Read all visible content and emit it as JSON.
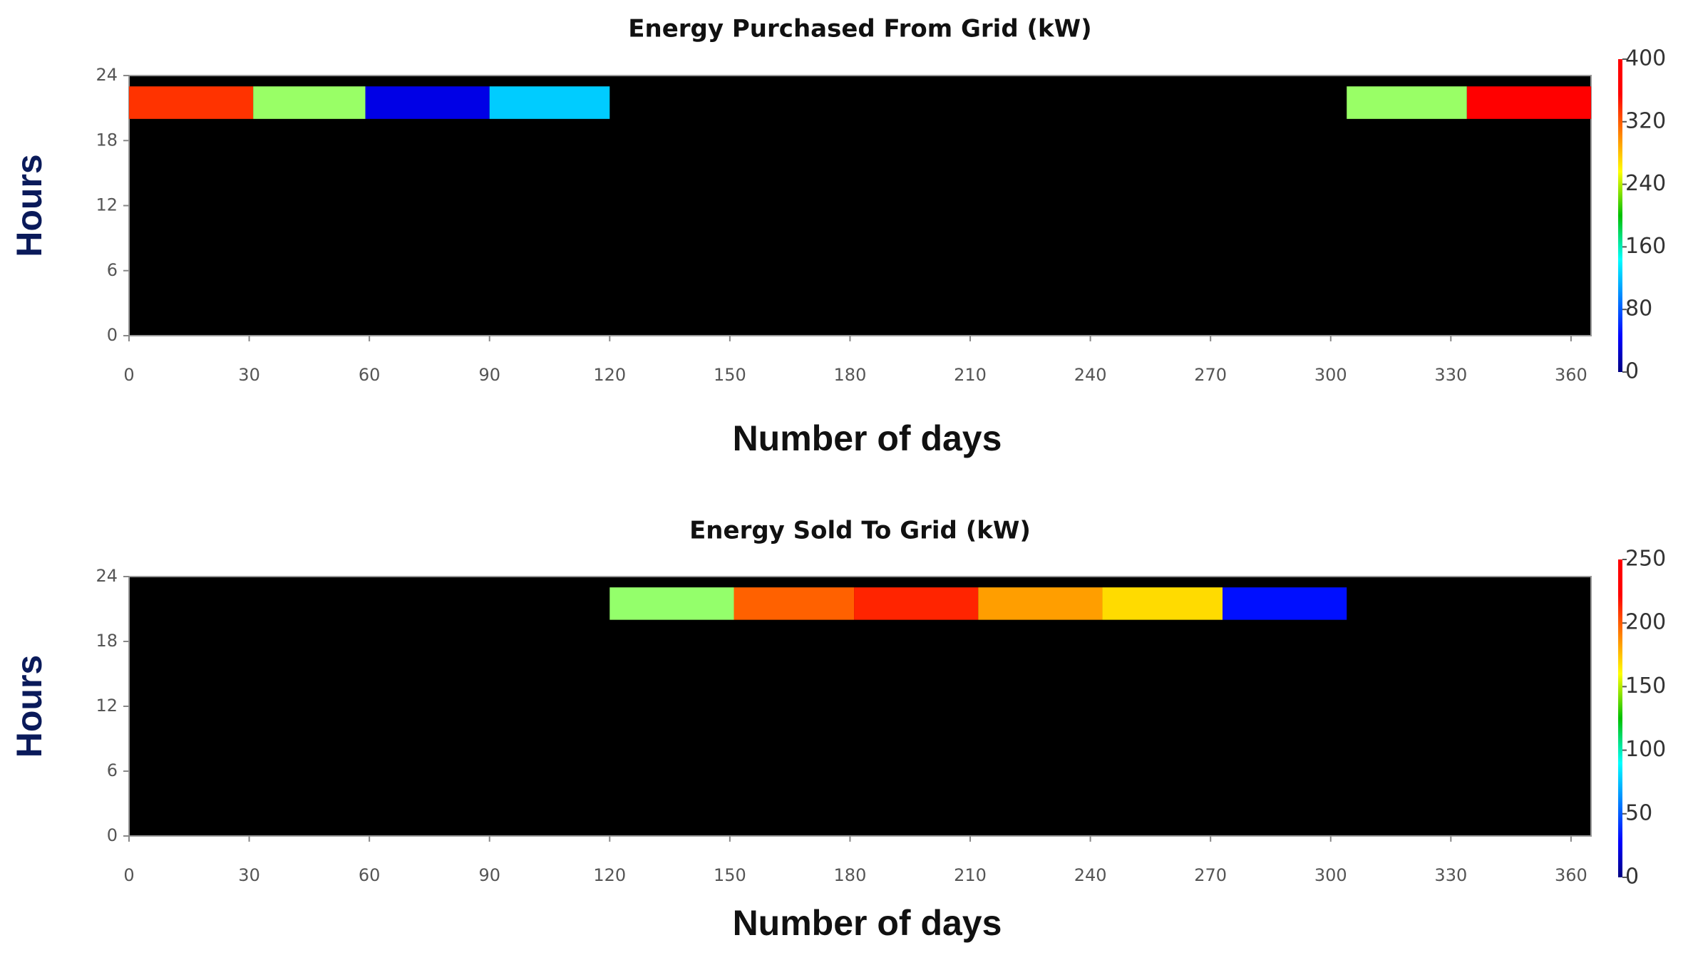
{
  "chart_data": [
    {
      "type": "heatmap",
      "title": "Energy Purchased From Grid (kW)",
      "x_label": "Number of days",
      "y_label": "Hours",
      "x_bins": [
        0,
        31,
        59,
        90,
        120,
        151,
        181,
        212,
        243,
        273,
        304,
        334,
        365
      ],
      "y_band": [
        20,
        23
      ],
      "values": [
        330,
        210,
        40,
        130,
        0,
        0,
        0,
        0,
        0,
        0,
        210,
        350
      ],
      "xlim": [
        0,
        365
      ],
      "xticks": [
        0,
        30,
        60,
        90,
        120,
        150,
        180,
        210,
        240,
        270,
        300,
        330,
        360
      ],
      "ylim": [
        0,
        24
      ],
      "yticks": [
        0,
        6,
        12,
        18,
        24
      ],
      "colormap": "jet",
      "clim": [
        0,
        400
      ],
      "cticks": [
        0,
        80,
        160,
        240,
        320,
        400
      ]
    },
    {
      "type": "heatmap",
      "title": "Energy Sold To Grid (kW)",
      "x_label": "Number of days",
      "y_label": "Hours",
      "x_bins": [
        0,
        31,
        59,
        90,
        120,
        151,
        181,
        212,
        243,
        273,
        304,
        334,
        365
      ],
      "y_band": [
        20,
        23
      ],
      "values": [
        0,
        0,
        0,
        0,
        130,
        195,
        210,
        180,
        165,
        35,
        0,
        0
      ],
      "xlim": [
        0,
        365
      ],
      "xticks": [
        0,
        30,
        60,
        90,
        120,
        150,
        180,
        210,
        240,
        270,
        300,
        330,
        360
      ],
      "ylim": [
        0,
        24
      ],
      "yticks": [
        0,
        6,
        12,
        18,
        24
      ],
      "colormap": "jet",
      "clim": [
        0,
        250
      ],
      "cticks": [
        0,
        50,
        100,
        150,
        200,
        250
      ]
    }
  ]
}
